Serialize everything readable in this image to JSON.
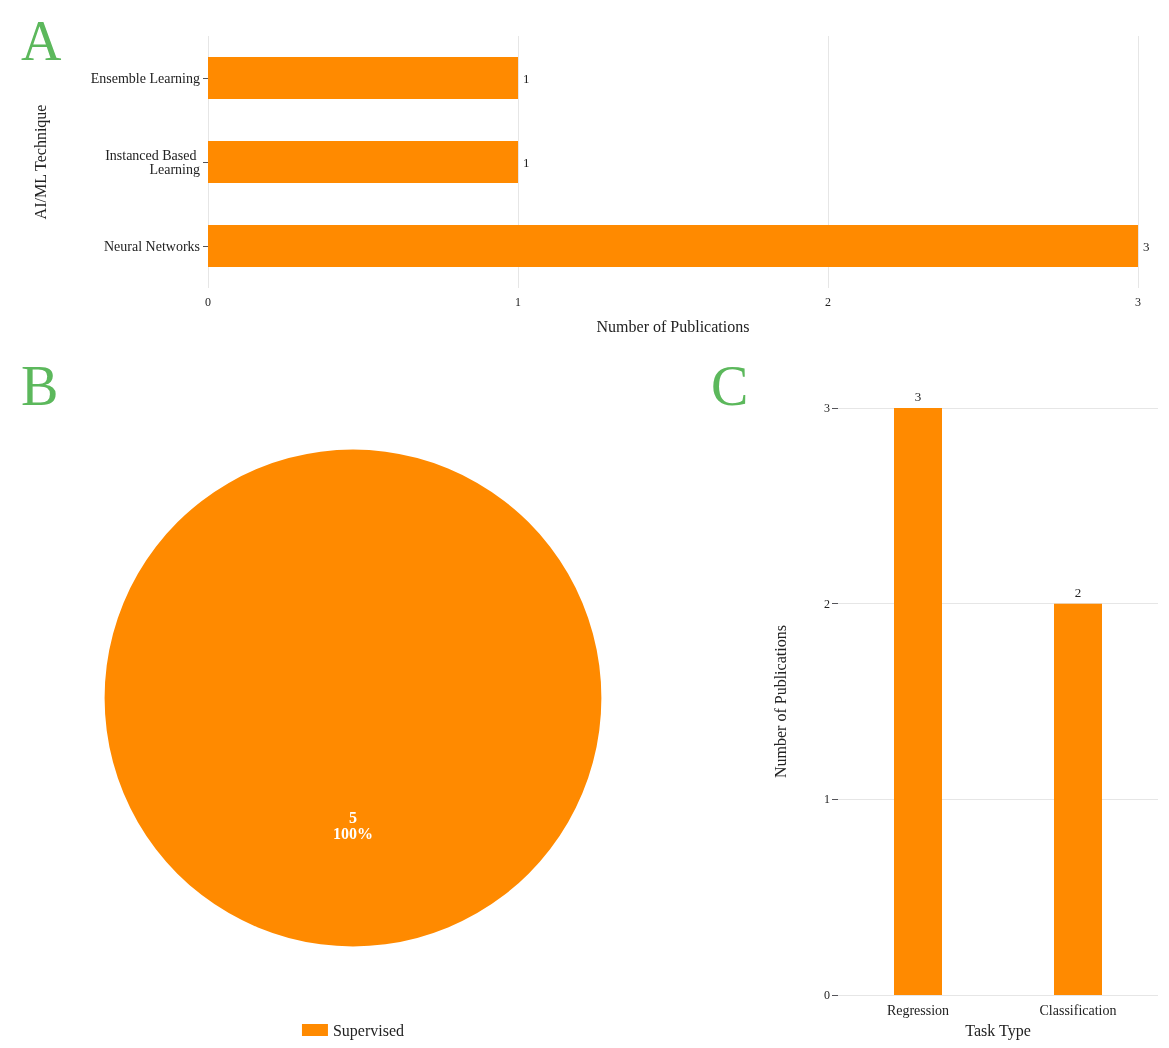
{
  "chart_data": [
    {
      "type": "bar",
      "title": "A",
      "orientation": "horizontal",
      "categories": [
        "Ensemble Learning",
        "Instanced Based Learning",
        "Neural Networks"
      ],
      "values": [
        1,
        1,
        3
      ],
      "color": "#ff8a00",
      "xlim": [
        0,
        3
      ],
      "xticks": [
        0,
        1,
        2,
        3
      ],
      "grid": "x",
      "data_labels": true,
      "xlabel": "Number of Publications",
      "ylabel": "AI/ML Technique"
    },
    {
      "type": "pie",
      "title": "B",
      "categories": [
        "Supervised"
      ],
      "values": [
        5
      ],
      "colors": [
        "#ff8a00"
      ],
      "data_labels": true,
      "annotations": [
        "100%"
      ],
      "legend": "bottom"
    },
    {
      "type": "bar",
      "title": "C",
      "categories": [
        "Regression",
        "Classification"
      ],
      "values": [
        3,
        2
      ],
      "color": "#ff8a00",
      "ylim": [
        0,
        3
      ],
      "yticks": [
        0,
        1,
        2,
        3
      ],
      "grid": "y",
      "data_labels": true,
      "xlabel": "Task Type",
      "ylabel": "Number of Publications"
    }
  ]
}
